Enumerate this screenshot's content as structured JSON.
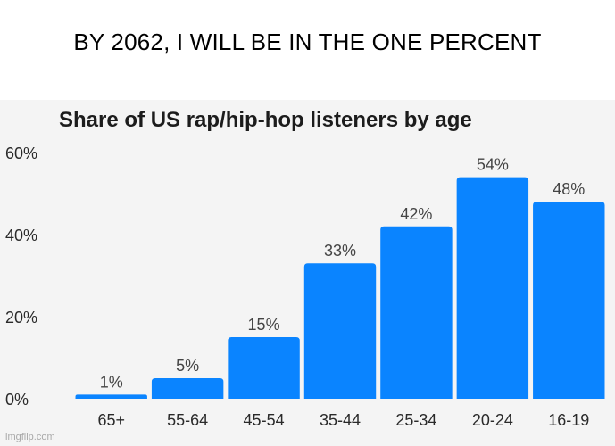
{
  "meme": {
    "caption": "BY 2062, I WILL BE IN THE ONE PERCENT",
    "watermark": "imgflip.com"
  },
  "chart_data": {
    "type": "bar",
    "title": "Share of US rap/hip-hop listeners by age",
    "categories": [
      "65+",
      "55-64",
      "45-54",
      "35-44",
      "25-34",
      "20-24",
      "16-19"
    ],
    "values": [
      1,
      5,
      15,
      33,
      42,
      54,
      48
    ],
    "data_labels": [
      "1%",
      "5%",
      "15%",
      "33%",
      "42%",
      "54%",
      "48%"
    ],
    "yticks": [
      0,
      20,
      40,
      60
    ],
    "ytick_labels": [
      "0%",
      "20%",
      "40%",
      "60%"
    ],
    "ylim": [
      0,
      60
    ],
    "xlabel": "",
    "ylabel": "",
    "grid": false,
    "bar_color": "#0a84ff"
  }
}
